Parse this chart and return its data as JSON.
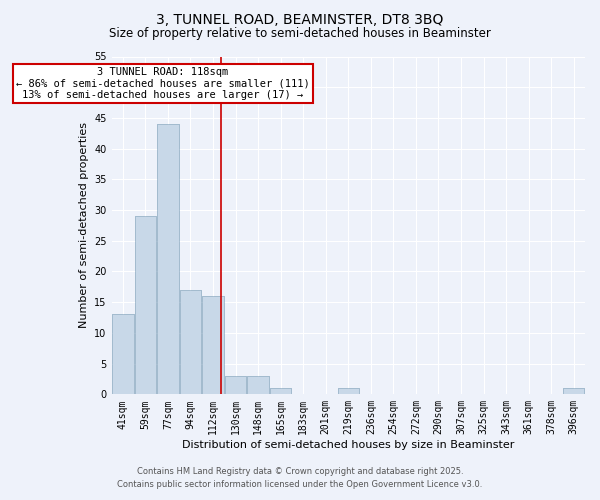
{
  "title": "3, TUNNEL ROAD, BEAMINSTER, DT8 3BQ",
  "subtitle": "Size of property relative to semi-detached houses in Beaminster",
  "xlabel": "Distribution of semi-detached houses by size in Beaminster",
  "ylabel": "Number of semi-detached properties",
  "bin_labels": [
    "41sqm",
    "59sqm",
    "77sqm",
    "94sqm",
    "112sqm",
    "130sqm",
    "148sqm",
    "165sqm",
    "183sqm",
    "201sqm",
    "219sqm",
    "236sqm",
    "254sqm",
    "272sqm",
    "290sqm",
    "307sqm",
    "325sqm",
    "343sqm",
    "361sqm",
    "378sqm",
    "396sqm"
  ],
  "bar_heights": [
    13,
    29,
    44,
    17,
    16,
    3,
    3,
    1,
    0,
    0,
    1,
    0,
    0,
    0,
    0,
    0,
    0,
    0,
    0,
    0,
    1
  ],
  "bar_color": "#c8d8e8",
  "bar_edge_color": "#a0b8cc",
  "annotation_line1": "3 TUNNEL ROAD: 118sqm",
  "annotation_line2": "← 86% of semi-detached houses are smaller (111)",
  "annotation_line3": "13% of semi-detached houses are larger (17) →",
  "vline_color": "#cc0000",
  "annotation_box_edge_color": "#cc0000",
  "ylim": [
    0,
    55
  ],
  "yticks": [
    0,
    5,
    10,
    15,
    20,
    25,
    30,
    35,
    40,
    45,
    50,
    55
  ],
  "footer_line1": "Contains HM Land Registry data © Crown copyright and database right 2025.",
  "footer_line2": "Contains public sector information licensed under the Open Government Licence v3.0.",
  "bg_color": "#eef2fa",
  "plot_bg_color": "#eef2fa",
  "grid_color": "#ffffff",
  "title_fontsize": 10,
  "subtitle_fontsize": 8.5,
  "axis_label_fontsize": 8,
  "tick_fontsize": 7,
  "annotation_fontsize": 7.5,
  "footer_fontsize": 6
}
